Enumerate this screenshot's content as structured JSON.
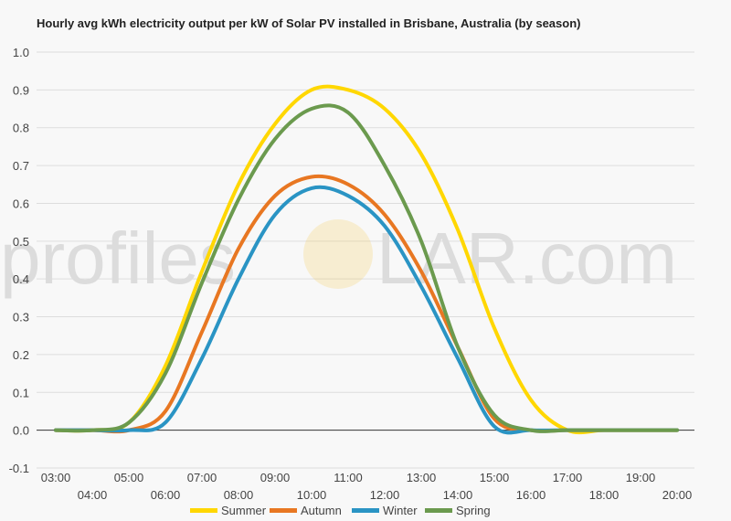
{
  "chart_data": {
    "type": "line",
    "title": "Hourly avg kWh electricity output per kW of Solar PV installed in Brisbane, Australia (by season)",
    "xlabel": "",
    "ylabel": "",
    "x": [
      "03:00",
      "04:00",
      "05:00",
      "06:00",
      "07:00",
      "08:00",
      "09:00",
      "10:00",
      "11:00",
      "12:00",
      "13:00",
      "14:00",
      "15:00",
      "16:00",
      "17:00",
      "18:00",
      "19:00",
      "20:00"
    ],
    "ylim": [
      -0.1,
      1.0
    ],
    "yticks": [
      "-0.1",
      "0.0",
      "0.1",
      "0.2",
      "0.3",
      "0.4",
      "0.5",
      "0.6",
      "0.7",
      "0.8",
      "0.9",
      "1.0"
    ],
    "grid": true,
    "legend": "bottom",
    "series": [
      {
        "name": "Summer",
        "color": "#ffd700",
        "values": [
          0.0,
          0.0,
          0.02,
          0.17,
          0.42,
          0.65,
          0.81,
          0.9,
          0.9,
          0.85,
          0.73,
          0.53,
          0.27,
          0.08,
          0.0,
          0.0,
          0.0,
          0.0
        ]
      },
      {
        "name": "Autumn",
        "color": "#e87722",
        "values": [
          0.0,
          0.0,
          0.0,
          0.05,
          0.26,
          0.48,
          0.62,
          0.67,
          0.65,
          0.57,
          0.42,
          0.22,
          0.03,
          0.0,
          0.0,
          0.0,
          0.0,
          0.0
        ]
      },
      {
        "name": "Winter",
        "color": "#2a94c4",
        "values": [
          0.0,
          0.0,
          0.0,
          0.02,
          0.19,
          0.4,
          0.57,
          0.64,
          0.62,
          0.54,
          0.38,
          0.19,
          0.01,
          0.0,
          0.0,
          0.0,
          0.0,
          0.0
        ]
      },
      {
        "name": "Spring",
        "color": "#6b9a4e",
        "values": [
          0.0,
          0.0,
          0.02,
          0.15,
          0.39,
          0.61,
          0.77,
          0.85,
          0.84,
          0.7,
          0.5,
          0.22,
          0.04,
          0.0,
          0.0,
          0.0,
          0.0,
          0.0
        ]
      }
    ]
  },
  "watermark": {
    "left": "profiles",
    "right": "LAR.com",
    "sun_color": "#f7c948"
  }
}
